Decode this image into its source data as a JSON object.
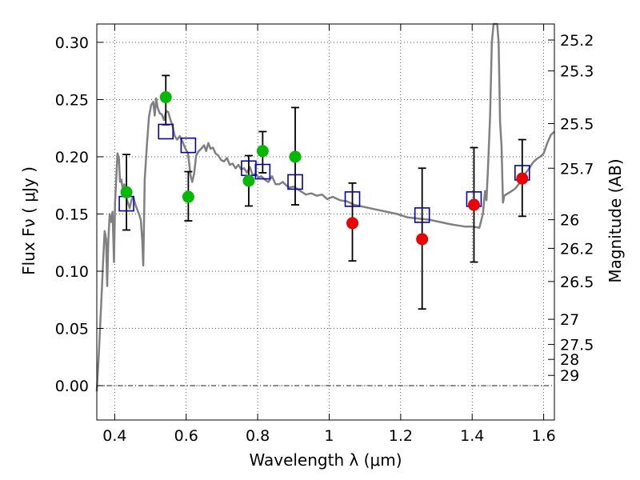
{
  "chart_data": {
    "type": "scatter",
    "title": "",
    "xlabel": "Wavelength  λ (μm)",
    "ylabel": "Flux  Fν  ( μJy )",
    "ylabel_right": "Magnitude (AB)",
    "xlim": [
      0.35,
      1.63
    ],
    "ylim": [
      -0.03,
      0.316
    ],
    "grid": true,
    "x_ticks": [
      {
        "value": 0.4,
        "label": "0.4"
      },
      {
        "value": 0.6,
        "label": "0.6"
      },
      {
        "value": 0.8,
        "label": "0.8"
      },
      {
        "value": 1.0,
        "label": "1"
      },
      {
        "value": 1.2,
        "label": "1.2"
      },
      {
        "value": 1.4,
        "label": "1.4"
      },
      {
        "value": 1.6,
        "label": "1.6"
      }
    ],
    "y_ticks": [
      {
        "value": 0.0,
        "label": "0.00"
      },
      {
        "value": 0.05,
        "label": "0.05"
      },
      {
        "value": 0.1,
        "label": "0.10"
      },
      {
        "value": 0.15,
        "label": "0.15"
      },
      {
        "value": 0.2,
        "label": "0.20"
      },
      {
        "value": 0.25,
        "label": "0.25"
      },
      {
        "value": 0.3,
        "label": "0.30"
      }
    ],
    "right_ticks": [
      {
        "flux": 0.302,
        "label": "25.2"
      },
      {
        "flux": 0.275,
        "label": "25.3"
      },
      {
        "flux": 0.229,
        "label": "25.5"
      },
      {
        "flux": 0.19,
        "label": "25.7"
      },
      {
        "flux": 0.145,
        "label": "26"
      },
      {
        "flux": 0.12,
        "label": "26.2"
      },
      {
        "flux": 0.091,
        "label": "26.5"
      },
      {
        "flux": 0.058,
        "label": "27"
      },
      {
        "flux": 0.036,
        "label": "27.5"
      },
      {
        "flux": 0.023,
        "label": "28"
      },
      {
        "flux": 0.009,
        "label": "29"
      }
    ],
    "template_spectrum": {
      "color": "#808080",
      "points": [
        [
          0.35,
          -0.005
        ],
        [
          0.356,
          0.03
        ],
        [
          0.362,
          0.07
        ],
        [
          0.368,
          0.11
        ],
        [
          0.372,
          0.135
        ],
        [
          0.376,
          0.128
        ],
        [
          0.379,
          0.087
        ],
        [
          0.382,
          0.125
        ],
        [
          0.386,
          0.15
        ],
        [
          0.39,
          0.143
        ],
        [
          0.394,
          0.152
        ],
        [
          0.398,
          0.108
        ],
        [
          0.401,
          0.16
        ],
        [
          0.405,
          0.185
        ],
        [
          0.408,
          0.203
        ],
        [
          0.412,
          0.198
        ],
        [
          0.415,
          0.178
        ],
        [
          0.419,
          0.18
        ],
        [
          0.423,
          0.17
        ],
        [
          0.427,
          0.176
        ],
        [
          0.432,
          0.165
        ],
        [
          0.437,
          0.16
        ],
        [
          0.442,
          0.155
        ],
        [
          0.447,
          0.162
        ],
        [
          0.452,
          0.165
        ],
        [
          0.458,
          0.158
        ],
        [
          0.463,
          0.154
        ],
        [
          0.468,
          0.15
        ],
        [
          0.473,
          0.145
        ],
        [
          0.477,
          0.127
        ],
        [
          0.48,
          0.105
        ],
        [
          0.484,
          0.18
        ],
        [
          0.49,
          0.21
        ],
        [
          0.496,
          0.235
        ],
        [
          0.502,
          0.245
        ],
        [
          0.508,
          0.248
        ],
        [
          0.512,
          0.236
        ],
        [
          0.516,
          0.251
        ],
        [
          0.52,
          0.243
        ],
        [
          0.526,
          0.238
        ],
        [
          0.532,
          0.237
        ],
        [
          0.538,
          0.232
        ],
        [
          0.544,
          0.24
        ],
        [
          0.55,
          0.239
        ],
        [
          0.556,
          0.232
        ],
        [
          0.562,
          0.227
        ],
        [
          0.568,
          0.218
        ],
        [
          0.575,
          0.215
        ],
        [
          0.582,
          0.218
        ],
        [
          0.59,
          0.213
        ],
        [
          0.598,
          0.207
        ],
        [
          0.605,
          0.203
        ],
        [
          0.612,
          0.184
        ],
        [
          0.617,
          0.178
        ],
        [
          0.622,
          0.185
        ],
        [
          0.628,
          0.201
        ],
        [
          0.635,
          0.205
        ],
        [
          0.642,
          0.207
        ],
        [
          0.65,
          0.21
        ],
        [
          0.656,
          0.205
        ],
        [
          0.662,
          0.212
        ],
        [
          0.668,
          0.207
        ],
        [
          0.675,
          0.208
        ],
        [
          0.682,
          0.203
        ],
        [
          0.69,
          0.201
        ],
        [
          0.698,
          0.197
        ],
        [
          0.706,
          0.196
        ],
        [
          0.714,
          0.199
        ],
        [
          0.722,
          0.193
        ],
        [
          0.73,
          0.194
        ],
        [
          0.738,
          0.19
        ],
        [
          0.746,
          0.193
        ],
        [
          0.754,
          0.189
        ],
        [
          0.762,
          0.19
        ],
        [
          0.77,
          0.186
        ],
        [
          0.778,
          0.191
        ],
        [
          0.786,
          0.184
        ],
        [
          0.794,
          0.185
        ],
        [
          0.802,
          0.182
        ],
        [
          0.81,
          0.183
        ],
        [
          0.82,
          0.18
        ],
        [
          0.83,
          0.178
        ],
        [
          0.84,
          0.183
        ],
        [
          0.85,
          0.176
        ],
        [
          0.86,
          0.176
        ],
        [
          0.87,
          0.178
        ],
        [
          0.88,
          0.175
        ],
        [
          0.89,
          0.173
        ],
        [
          0.9,
          0.174
        ],
        [
          0.91,
          0.172
        ],
        [
          0.92,
          0.17
        ],
        [
          0.935,
          0.167
        ],
        [
          0.95,
          0.168
        ],
        [
          0.965,
          0.166
        ],
        [
          0.98,
          0.167
        ],
        [
          0.995,
          0.163
        ],
        [
          1.01,
          0.165
        ],
        [
          1.03,
          0.162
        ],
        [
          1.05,
          0.161
        ],
        [
          1.07,
          0.158
        ],
        [
          1.1,
          0.156
        ],
        [
          1.13,
          0.154
        ],
        [
          1.16,
          0.152
        ],
        [
          1.19,
          0.15
        ],
        [
          1.22,
          0.147
        ],
        [
          1.25,
          0.146
        ],
        [
          1.28,
          0.145
        ],
        [
          1.31,
          0.143
        ],
        [
          1.34,
          0.141
        ],
        [
          1.36,
          0.14
        ],
        [
          1.38,
          0.139
        ],
        [
          1.4,
          0.139
        ],
        [
          1.42,
          0.138
        ],
        [
          1.43,
          0.15
        ],
        [
          1.436,
          0.17
        ],
        [
          1.44,
          0.162
        ],
        [
          1.445,
          0.195
        ],
        [
          1.45,
          0.235
        ],
        [
          1.455,
          0.3
        ],
        [
          1.46,
          0.32
        ],
        [
          1.47,
          0.32
        ],
        [
          1.474,
          0.3
        ],
        [
          1.478,
          0.23
        ],
        [
          1.482,
          0.21
        ],
        [
          1.486,
          0.16
        ],
        [
          1.49,
          0.166
        ],
        [
          1.5,
          0.168
        ],
        [
          1.51,
          0.17
        ],
        [
          1.52,
          0.172
        ],
        [
          1.53,
          0.176
        ],
        [
          1.54,
          0.18
        ],
        [
          1.55,
          0.186
        ],
        [
          1.56,
          0.19
        ],
        [
          1.57,
          0.195
        ],
        [
          1.58,
          0.198
        ],
        [
          1.59,
          0.2
        ],
        [
          1.6,
          0.203
        ],
        [
          1.61,
          0.212
        ],
        [
          1.62,
          0.219
        ],
        [
          1.63,
          0.222
        ]
      ]
    },
    "model_points": {
      "marker": "open-square",
      "color": "#0000cc",
      "values": [
        [
          0.433,
          0.159
        ],
        [
          0.543,
          0.222
        ],
        [
          0.606,
          0.21
        ],
        [
          0.775,
          0.19
        ],
        [
          0.814,
          0.187
        ],
        [
          0.905,
          0.178
        ],
        [
          1.065,
          0.163
        ],
        [
          1.26,
          0.149
        ],
        [
          1.405,
          0.163
        ],
        [
          1.54,
          0.186
        ]
      ]
    },
    "observed_points": [
      {
        "x": 0.433,
        "y": 0.169,
        "err_low": 0.136,
        "err_high": 0.202,
        "color": "#00bb00"
      },
      {
        "x": 0.543,
        "y": 0.252,
        "err_low": 0.228,
        "err_high": 0.271,
        "color": "#00bb00"
      },
      {
        "x": 0.606,
        "y": 0.165,
        "err_low": 0.144,
        "err_high": 0.187,
        "color": "#00bb00"
      },
      {
        "x": 0.775,
        "y": 0.179,
        "err_low": 0.157,
        "err_high": 0.201,
        "color": "#00bb00"
      },
      {
        "x": 0.814,
        "y": 0.205,
        "err_low": 0.186,
        "err_high": 0.222,
        "color": "#00bb00"
      },
      {
        "x": 0.905,
        "y": 0.2,
        "err_low": 0.158,
        "err_high": 0.243,
        "color": "#00bb00"
      },
      {
        "x": 1.065,
        "y": 0.142,
        "err_low": 0.109,
        "err_high": 0.177,
        "color": "#ee0000"
      },
      {
        "x": 1.26,
        "y": 0.128,
        "err_low": 0.067,
        "err_high": 0.19,
        "color": "#ee0000"
      },
      {
        "x": 1.405,
        "y": 0.158,
        "err_low": 0.108,
        "err_high": 0.208,
        "color": "#ee0000"
      },
      {
        "x": 1.54,
        "y": 0.181,
        "err_low": 0.148,
        "err_high": 0.215,
        "color": "#ee0000"
      }
    ]
  }
}
